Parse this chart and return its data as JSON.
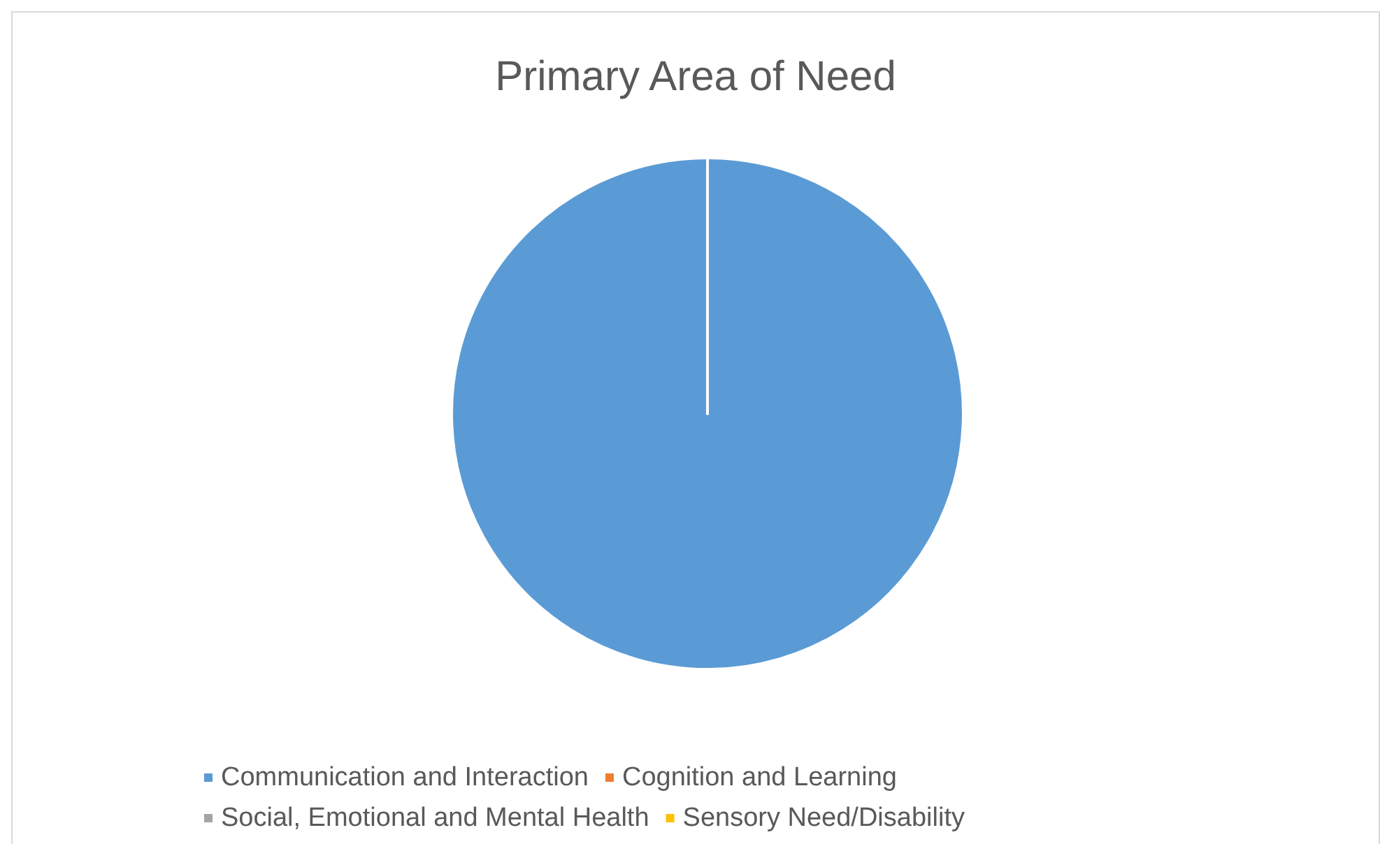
{
  "chart_data": {
    "type": "pie",
    "title": "Primary Area of Need",
    "categories": [
      "Communication and Interaction",
      "Cognition and Learning",
      "Social, Emotional and Mental Health",
      "Sensory Need/Disability"
    ],
    "values": [
      100,
      0,
      0,
      0
    ],
    "colors": [
      "#5b9bd5",
      "#ed7d31",
      "#a5a5a5",
      "#ffc000"
    ],
    "legend": "bottom"
  }
}
